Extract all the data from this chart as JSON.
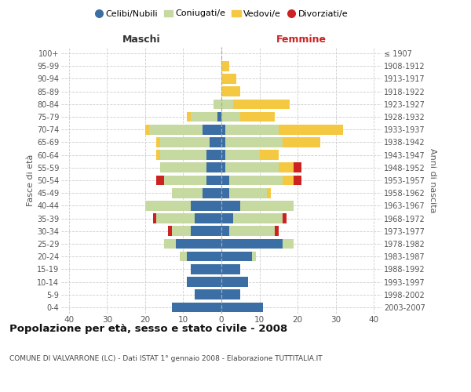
{
  "age_groups": [
    "100+",
    "95-99",
    "90-94",
    "85-89",
    "80-84",
    "75-79",
    "70-74",
    "65-69",
    "60-64",
    "55-59",
    "50-54",
    "45-49",
    "40-44",
    "35-39",
    "30-34",
    "25-29",
    "20-24",
    "15-19",
    "10-14",
    "5-9",
    "0-4"
  ],
  "birth_years": [
    "≤ 1907",
    "1908-1912",
    "1913-1917",
    "1918-1922",
    "1923-1927",
    "1928-1932",
    "1933-1937",
    "1938-1942",
    "1943-1947",
    "1948-1952",
    "1953-1957",
    "1958-1962",
    "1963-1967",
    "1968-1972",
    "1973-1977",
    "1978-1982",
    "1983-1987",
    "1988-1992",
    "1993-1997",
    "1998-2002",
    "2003-2007"
  ],
  "males_celibi": [
    0,
    0,
    0,
    0,
    0,
    1,
    5,
    3,
    4,
    4,
    4,
    5,
    8,
    7,
    8,
    12,
    9,
    8,
    9,
    7,
    13
  ],
  "males_coniugati": [
    0,
    0,
    0,
    0,
    2,
    7,
    14,
    13,
    12,
    12,
    11,
    8,
    12,
    10,
    5,
    3,
    2,
    0,
    0,
    0,
    0
  ],
  "males_vedovi": [
    0,
    0,
    0,
    0,
    0,
    1,
    1,
    1,
    1,
    0,
    0,
    0,
    0,
    0,
    0,
    0,
    0,
    0,
    0,
    0,
    0
  ],
  "males_divorziati": [
    0,
    0,
    0,
    0,
    0,
    0,
    0,
    0,
    0,
    0,
    2,
    0,
    0,
    1,
    1,
    0,
    0,
    0,
    0,
    0,
    0
  ],
  "females_nubili": [
    0,
    0,
    0,
    0,
    0,
    0,
    1,
    1,
    1,
    1,
    2,
    2,
    5,
    3,
    2,
    16,
    8,
    5,
    7,
    5,
    11
  ],
  "females_coniugate": [
    0,
    0,
    0,
    0,
    3,
    5,
    14,
    15,
    9,
    14,
    14,
    10,
    14,
    13,
    12,
    3,
    1,
    0,
    0,
    0,
    0
  ],
  "females_vedove": [
    0,
    2,
    4,
    5,
    15,
    9,
    17,
    10,
    5,
    4,
    3,
    1,
    0,
    0,
    0,
    0,
    0,
    0,
    0,
    0,
    0
  ],
  "females_divorziate": [
    0,
    0,
    0,
    0,
    0,
    0,
    0,
    0,
    0,
    2,
    2,
    0,
    0,
    1,
    1,
    0,
    0,
    0,
    0,
    0,
    0
  ],
  "col_blue": "#3a6ea5",
  "col_green": "#c5d9a0",
  "col_yellow": "#f5c842",
  "col_red": "#cc2222",
  "title": "Popolazione per età, sesso e stato civile - 2008",
  "subtitle": "COMUNE DI VALVARRONE (LC) - Dati ISTAT 1° gennaio 2008 - Elaborazione TUTTITALIA.IT",
  "legend_labels": [
    "Celibi/Nubili",
    "Coniugati/e",
    "Vedovi/e",
    "Divorziati/e"
  ],
  "label_maschi": "Maschi",
  "label_femmine": "Femmine",
  "label_fasce": "Fasce di età",
  "label_anni": "Anni di nascita",
  "xlim": 42
}
